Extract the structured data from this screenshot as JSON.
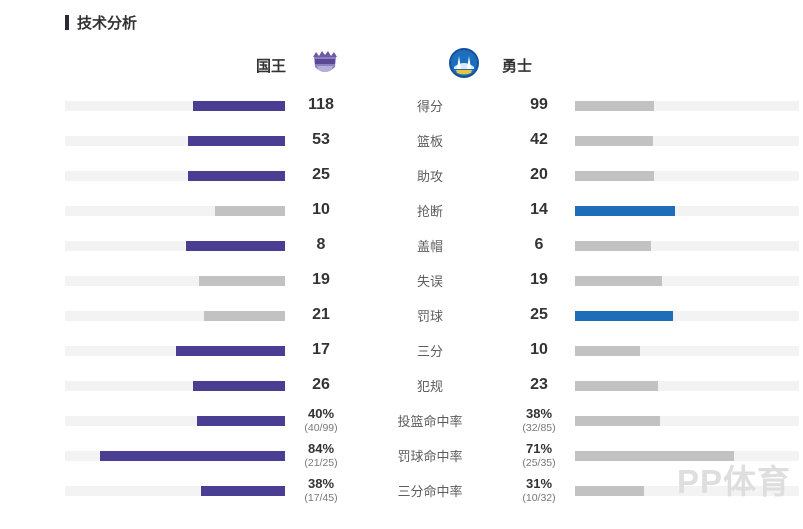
{
  "page": {
    "title": "技术分析",
    "watermark": "PP体育"
  },
  "teams": {
    "home": {
      "name": "国王",
      "color": "#4a3e93"
    },
    "away": {
      "name": "勇士",
      "color": "#1e6db9"
    }
  },
  "colors": {
    "home_bar": "#4a3e93",
    "away_bar": "#1e6db9",
    "neutral_bar": "#c2c2c2",
    "track": "#f3f3f3"
  },
  "chart_data": {
    "type": "bar",
    "title": "技术分析",
    "legend": [
      "国王",
      "勇士"
    ],
    "legend_position": "top",
    "layout": "mirrored horizontal comparison bars, higher value gets team color, lower/equal value gets gray",
    "rows": [
      {
        "label": "得分",
        "home": 118,
        "away": 99,
        "home_display": "118",
        "away_display": "99",
        "home_width": 42,
        "away_width": 35.2,
        "home_colored": true,
        "away_colored": false
      },
      {
        "label": "篮板",
        "home": 53,
        "away": 42,
        "home_display": "53",
        "away_display": "42",
        "home_width": 44,
        "away_width": 34.9,
        "home_colored": true,
        "away_colored": false
      },
      {
        "label": "助攻",
        "home": 25,
        "away": 20,
        "home_display": "25",
        "away_display": "20",
        "home_width": 44,
        "away_width": 35.2,
        "home_colored": true,
        "away_colored": false
      },
      {
        "label": "抢断",
        "home": 10,
        "away": 14,
        "home_display": "10",
        "away_display": "14",
        "home_width": 31.9,
        "away_width": 44.6,
        "home_colored": false,
        "away_colored": true
      },
      {
        "label": "盖帽",
        "home": 8,
        "away": 6,
        "home_display": "8",
        "away_display": "6",
        "home_width": 45,
        "away_width": 33.8,
        "home_colored": true,
        "away_colored": false
      },
      {
        "label": "失误",
        "home": 19,
        "away": 19,
        "home_display": "19",
        "away_display": "19",
        "home_width": 39,
        "away_width": 39,
        "home_colored": false,
        "away_colored": false
      },
      {
        "label": "罚球",
        "home": 21,
        "away": 25,
        "home_display": "21",
        "away_display": "25",
        "home_width": 36.7,
        "away_width": 43.7,
        "home_colored": false,
        "away_colored": true
      },
      {
        "label": "三分",
        "home": 17,
        "away": 10,
        "home_display": "17",
        "away_display": "10",
        "home_width": 49.5,
        "away_width": 29.1,
        "home_colored": true,
        "away_colored": false
      },
      {
        "label": "犯规",
        "home": 26,
        "away": 23,
        "home_display": "26",
        "away_display": "23",
        "home_width": 42,
        "away_width": 37.2,
        "home_colored": true,
        "away_colored": false
      },
      {
        "label": "投篮命中率",
        "home": 40,
        "away": 38,
        "home_display": "40%",
        "home_sub": "(40/99)",
        "away_display": "38%",
        "away_sub": "(32/85)",
        "home_width": 40,
        "away_width": 38,
        "home_colored": true,
        "away_colored": false
      },
      {
        "label": "罚球命中率",
        "home": 84,
        "away": 71,
        "home_display": "84%",
        "home_sub": "(21/25)",
        "away_display": "71%",
        "away_sub": "(25/35)",
        "home_width": 84,
        "away_width": 71,
        "home_colored": true,
        "away_colored": false
      },
      {
        "label": "三分命中率",
        "home": 38,
        "away": 31,
        "home_display": "38%",
        "home_sub": "(17/45)",
        "away_display": "31%",
        "away_sub": "(10/32)",
        "home_width": 38,
        "away_width": 31,
        "home_colored": true,
        "away_colored": false
      }
    ]
  }
}
